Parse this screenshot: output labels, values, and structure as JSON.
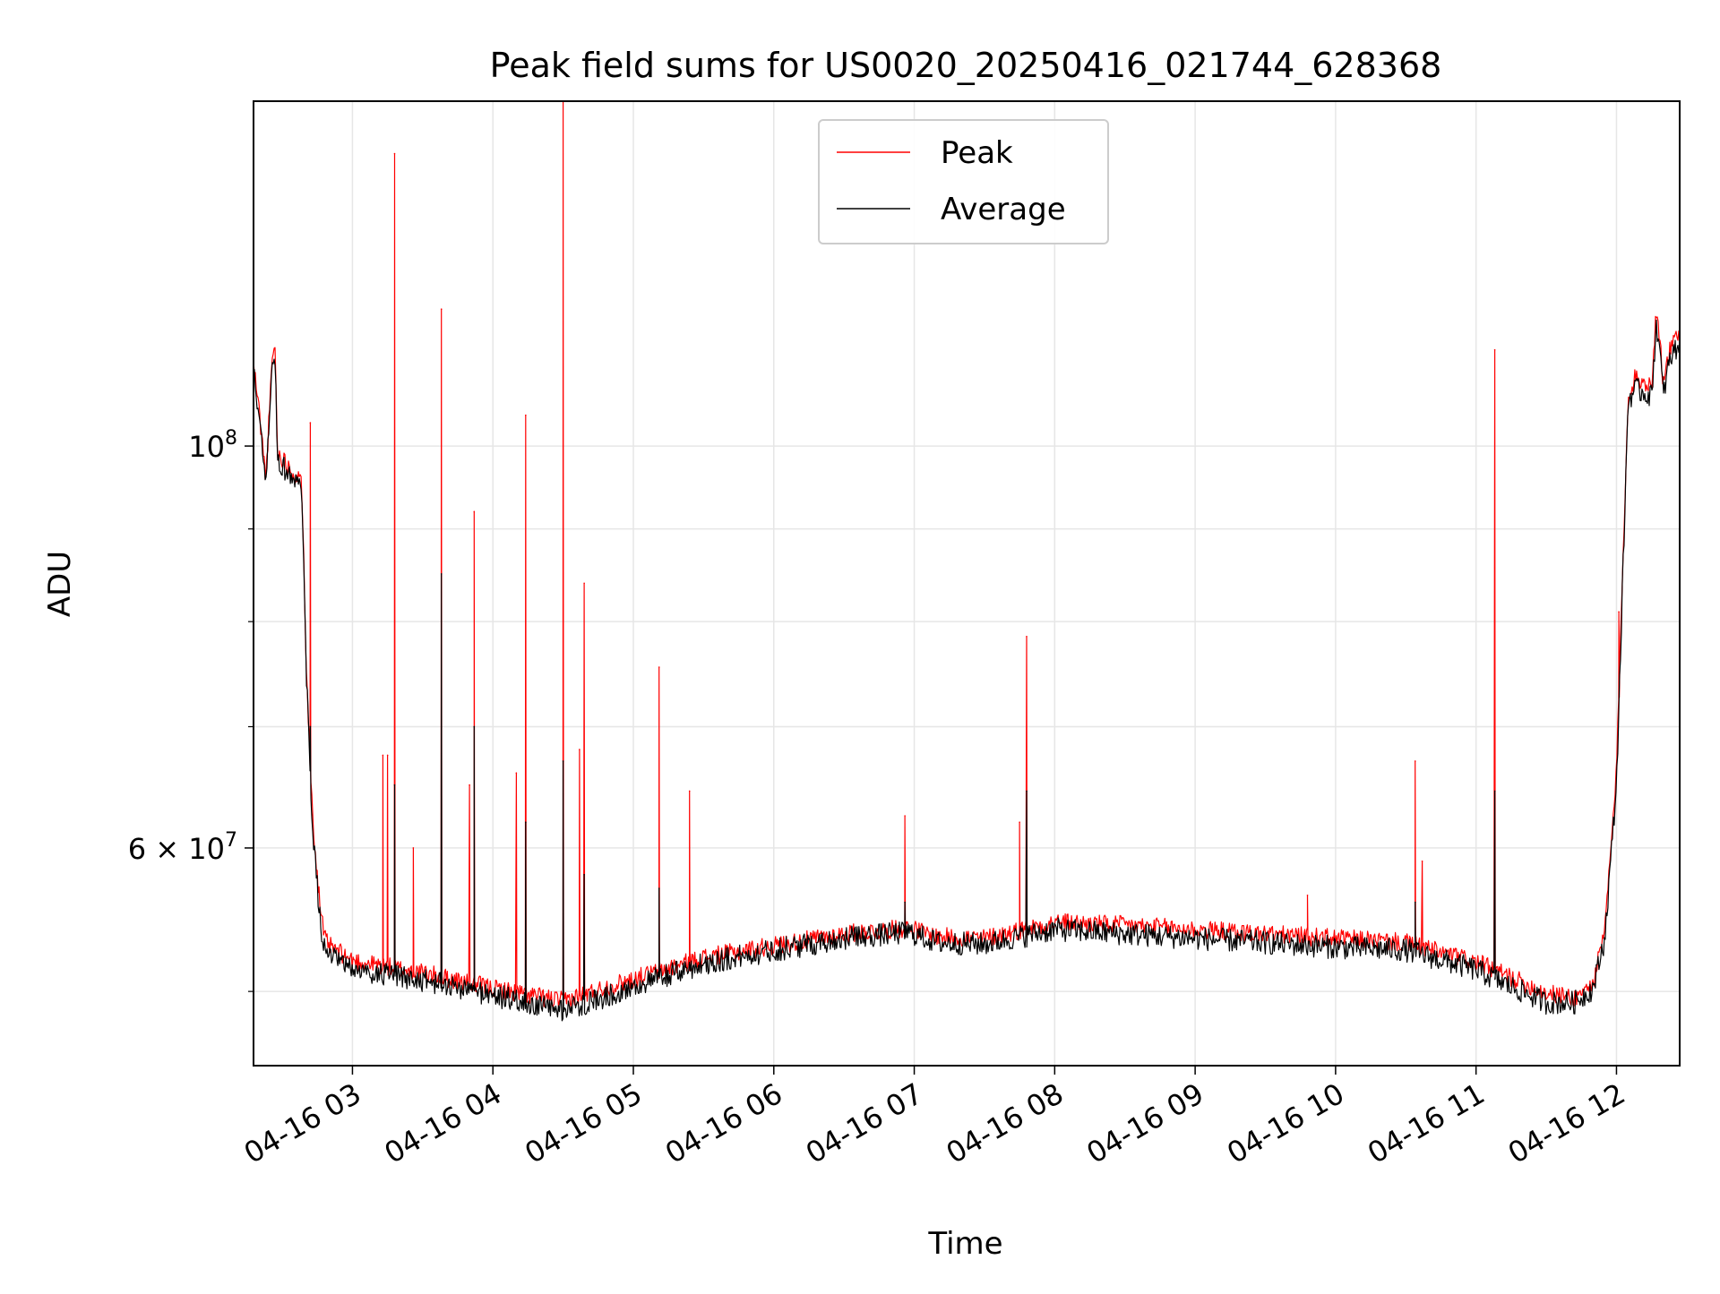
{
  "chart_data": {
    "type": "line",
    "title": "Peak field sums for US0020_20250416_021744_628368",
    "xlabel": "Time",
    "ylabel": "ADU",
    "y_scale": "log",
    "xlim": [
      "2025-04-16T02:17:44",
      "2025-04-16T12:27:00"
    ],
    "ylim": [
      45500000,
      155000000
    ],
    "x_ticks": [
      {
        "value": "2025-04-16T03:00",
        "label": "04-16 03"
      },
      {
        "value": "2025-04-16T04:00",
        "label": "04-16 04"
      },
      {
        "value": "2025-04-16T05:00",
        "label": "04-16 05"
      },
      {
        "value": "2025-04-16T06:00",
        "label": "04-16 06"
      },
      {
        "value": "2025-04-16T07:00",
        "label": "04-16 07"
      },
      {
        "value": "2025-04-16T08:00",
        "label": "04-16 08"
      },
      {
        "value": "2025-04-16T09:00",
        "label": "04-16 09"
      },
      {
        "value": "2025-04-16T10:00",
        "label": "04-16 10"
      },
      {
        "value": "2025-04-16T11:00",
        "label": "04-16 11"
      },
      {
        "value": "2025-04-16T12:00",
        "label": "04-16 12"
      }
    ],
    "y_major_ticks": [
      {
        "value": 100000000,
        "label_base": "10",
        "label_exp": "8"
      },
      {
        "value": 60000000,
        "label_base": "6 × 10",
        "label_exp": "7"
      }
    ],
    "y_minor_ticks": [
      50000000,
      70000000,
      80000000,
      90000000
    ],
    "grid": true,
    "legend_position": "upper center",
    "series": [
      {
        "name": "Peak",
        "color": "#ff0000",
        "x": [
          "2025-04-16T02:17:44",
          "2025-04-16T02:20",
          "2025-04-16T02:23",
          "2025-04-16T02:26",
          "2025-04-16T02:27",
          "2025-04-16T02:28",
          "2025-04-16T02:30",
          "2025-04-16T02:33",
          "2025-04-16T02:35",
          "2025-04-16T02:38",
          "2025-04-16T02:39",
          "2025-04-16T02:40",
          "2025-04-16T02:42",
          "2025-04-16T02:44",
          "2025-04-16T02:46",
          "2025-04-16T02:48",
          "2025-04-16T02:50",
          "2025-04-16T02:55",
          "2025-04-16T03:00",
          "2025-04-16T03:30",
          "2025-04-16T04:00",
          "2025-04-16T04:15",
          "2025-04-16T04:30",
          "2025-04-16T05:00",
          "2025-04-16T05:30",
          "2025-04-16T06:00",
          "2025-04-16T06:30",
          "2025-04-16T06:58",
          "2025-04-16T07:10",
          "2025-04-16T07:30",
          "2025-04-16T08:00",
          "2025-04-16T08:30",
          "2025-04-16T09:00",
          "2025-04-16T09:30",
          "2025-04-16T10:00",
          "2025-04-16T10:30",
          "2025-04-16T11:00",
          "2025-04-16T11:15",
          "2025-04-16T11:30",
          "2025-04-16T11:42",
          "2025-04-16T11:50",
          "2025-04-16T11:55",
          "2025-04-16T12:00",
          "2025-04-16T12:02",
          "2025-04-16T12:05",
          "2025-04-16T12:08",
          "2025-04-16T12:12",
          "2025-04-16T12:15",
          "2025-04-16T12:17",
          "2025-04-16T12:19",
          "2025-04-16T12:20",
          "2025-04-16T12:22",
          "2025-04-16T12:24",
          "2025-04-16T12:27"
        ],
        "y": [
          111000000,
          105000000,
          96000000,
          113000000,
          113000000,
          99000000,
          98500000,
          97500000,
          96500000,
          95500000,
          90000000,
          78000000,
          66000000,
          60000000,
          56000000,
          53500000,
          53000000,
          52500000,
          52000000,
          51200000,
          50200000,
          49800000,
          49400000,
          50800000,
          52200000,
          53000000,
          53800000,
          54200000,
          53600000,
          53500000,
          54600000,
          54400000,
          54100000,
          53800000,
          53500000,
          53200000,
          51900000,
          50900000,
          49900000,
          49600000,
          50500000,
          54000000,
          66000000,
          80000000,
          107000000,
          109000000,
          108500000,
          108000000,
          119000000,
          113000000,
          108000000,
          112000000,
          114000000,
          115000000
        ],
        "spikes": [
          {
            "x": "2025-04-16T02:42",
            "y": 103000000
          },
          {
            "x": "2025-04-16T03:13",
            "y": 67500000
          },
          {
            "x": "2025-04-16T03:15",
            "y": 67500000
          },
          {
            "x": "2025-04-16T03:18",
            "y": 145000000
          },
          {
            "x": "2025-04-16T03:26",
            "y": 60000000
          },
          {
            "x": "2025-04-16T03:38",
            "y": 119000000
          },
          {
            "x": "2025-04-16T03:50",
            "y": 65000000
          },
          {
            "x": "2025-04-16T03:52",
            "y": 92000000
          },
          {
            "x": "2025-04-16T04:10",
            "y": 66000000
          },
          {
            "x": "2025-04-16T04:14",
            "y": 104000000
          },
          {
            "x": "2025-04-16T04:30",
            "y": 155000000
          },
          {
            "x": "2025-04-16T04:37",
            "y": 68000000
          },
          {
            "x": "2025-04-16T04:39",
            "y": 84000000
          },
          {
            "x": "2025-04-16T05:11",
            "y": 75500000
          },
          {
            "x": "2025-04-16T05:24",
            "y": 64500000
          },
          {
            "x": "2025-04-16T06:56",
            "y": 62500000
          },
          {
            "x": "2025-04-16T07:45",
            "y": 62000000
          },
          {
            "x": "2025-04-16T07:48",
            "y": 78500000
          },
          {
            "x": "2025-04-16T09:48",
            "y": 56500000
          },
          {
            "x": "2025-04-16T10:34",
            "y": 67000000
          },
          {
            "x": "2025-04-16T10:37",
            "y": 59000000
          },
          {
            "x": "2025-04-16T11:08",
            "y": 113000000
          },
          {
            "x": "2025-04-16T12:01",
            "y": 81000000
          }
        ]
      },
      {
        "name": "Average",
        "color": "#000000",
        "x": [
          "2025-04-16T02:17:44",
          "2025-04-16T02:20",
          "2025-04-16T02:23",
          "2025-04-16T02:26",
          "2025-04-16T02:27",
          "2025-04-16T02:28",
          "2025-04-16T02:30",
          "2025-04-16T02:33",
          "2025-04-16T02:35",
          "2025-04-16T02:38",
          "2025-04-16T02:39",
          "2025-04-16T02:40",
          "2025-04-16T02:42",
          "2025-04-16T02:44",
          "2025-04-16T02:46",
          "2025-04-16T02:48",
          "2025-04-16T02:50",
          "2025-04-16T02:55",
          "2025-04-16T03:00",
          "2025-04-16T03:30",
          "2025-04-16T04:00",
          "2025-04-16T04:15",
          "2025-04-16T04:30",
          "2025-04-16T05:00",
          "2025-04-16T05:30",
          "2025-04-16T06:00",
          "2025-04-16T06:30",
          "2025-04-16T06:58",
          "2025-04-16T07:10",
          "2025-04-16T07:30",
          "2025-04-16T08:00",
          "2025-04-16T08:30",
          "2025-04-16T09:00",
          "2025-04-16T09:30",
          "2025-04-16T10:00",
          "2025-04-16T10:30",
          "2025-04-16T11:00",
          "2025-04-16T11:15",
          "2025-04-16T11:30",
          "2025-04-16T11:42",
          "2025-04-16T11:50",
          "2025-04-16T11:55",
          "2025-04-16T12:00",
          "2025-04-16T12:02",
          "2025-04-16T12:05",
          "2025-04-16T12:08",
          "2025-04-16T12:12",
          "2025-04-16T12:15",
          "2025-04-16T12:17",
          "2025-04-16T12:19",
          "2025-04-16T12:20",
          "2025-04-16T12:22",
          "2025-04-16T12:24",
          "2025-04-16T12:27"
        ],
        "y": [
          110000000,
          104000000,
          95000000,
          112000000,
          112000000,
          98000000,
          97500000,
          96500000,
          95500000,
          94500000,
          89000000,
          77000000,
          65000000,
          59000000,
          55000000,
          52800000,
          52300000,
          51800000,
          51400000,
          50700000,
          49800000,
          49200000,
          48800000,
          50300000,
          51800000,
          52700000,
          53500000,
          53900000,
          53200000,
          53100000,
          54100000,
          53800000,
          53500000,
          53200000,
          52900000,
          52700000,
          51400000,
          50300000,
          49300000,
          49300000,
          50200000,
          53500000,
          65000000,
          79000000,
          106000000,
          107500000,
          107000000,
          106500000,
          117000000,
          111000000,
          106500000,
          110500000,
          112500000,
          114000000
        ],
        "spikes": [
          {
            "x": "2025-04-16T02:42",
            "y": 70000000
          },
          {
            "x": "2025-04-16T03:18",
            "y": 65000000
          },
          {
            "x": "2025-04-16T03:38",
            "y": 85000000
          },
          {
            "x": "2025-04-16T03:52",
            "y": 70000000
          },
          {
            "x": "2025-04-16T04:14",
            "y": 62000000
          },
          {
            "x": "2025-04-16T04:30",
            "y": 67000000
          },
          {
            "x": "2025-04-16T04:39",
            "y": 58000000
          },
          {
            "x": "2025-04-16T05:11",
            "y": 57000000
          },
          {
            "x": "2025-04-16T06:56",
            "y": 56000000
          },
          {
            "x": "2025-04-16T07:48",
            "y": 64500000
          },
          {
            "x": "2025-04-16T10:34",
            "y": 56000000
          },
          {
            "x": "2025-04-16T11:08",
            "y": 64500000
          }
        ]
      }
    ]
  }
}
